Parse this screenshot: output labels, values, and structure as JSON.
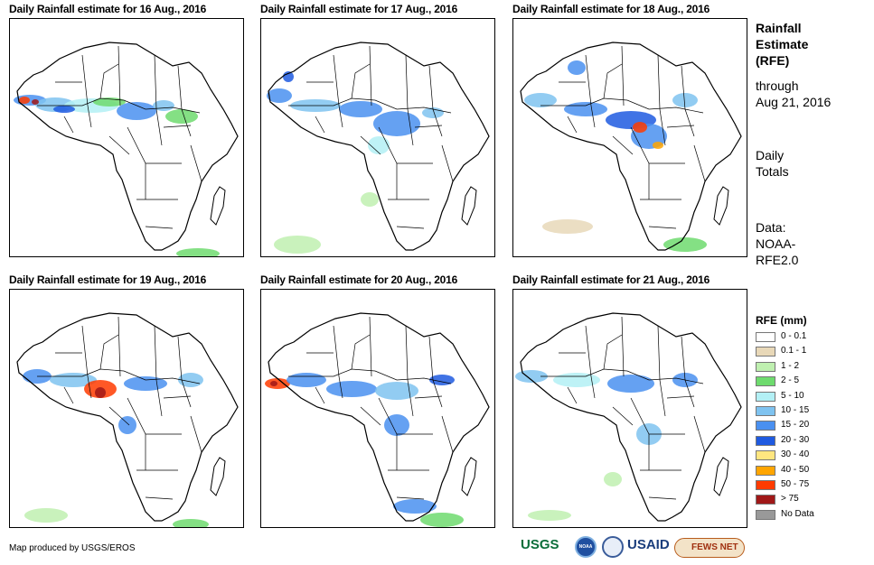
{
  "panels": [
    {
      "title": "Daily Rainfall estimate for 16 Aug., 2016"
    },
    {
      "title": "Daily Rainfall estimate for 17 Aug., 2016"
    },
    {
      "title": "Daily Rainfall estimate for 18 Aug., 2016"
    },
    {
      "title": "Daily Rainfall estimate for 19 Aug., 2016"
    },
    {
      "title": "Daily Rainfall estimate for 20 Aug., 2016"
    },
    {
      "title": "Daily Rainfall estimate for 21 Aug., 2016"
    }
  ],
  "sidebar": {
    "title_line1": "Rainfall",
    "title_line2": "Estimate",
    "title_line3": "(RFE)",
    "through_line1": "through",
    "through_line2": "Aug 21, 2016",
    "totals_line1": "Daily",
    "totals_line2": "Totals",
    "data_line1": "Data:",
    "data_line2": "NOAA-",
    "data_line3": "RFE2.0"
  },
  "legend": {
    "title": "RFE (mm)",
    "items": [
      {
        "label": "0 - 0.1",
        "color": "#ffffff"
      },
      {
        "label": "0.1 - 1",
        "color": "#e8d8b8"
      },
      {
        "label": "1 - 2",
        "color": "#bff0b0"
      },
      {
        "label": "2 - 5",
        "color": "#6edb6e"
      },
      {
        "label": "5 - 10",
        "color": "#b3f0f5"
      },
      {
        "label": "10 - 15",
        "color": "#7fc3f0"
      },
      {
        "label": "15 - 20",
        "color": "#4a90f0"
      },
      {
        "label": "20 - 30",
        "color": "#1f5ae0"
      },
      {
        "label": "30 - 40",
        "color": "#ffe680"
      },
      {
        "label": "40 - 50",
        "color": "#ffa500"
      },
      {
        "label": "50 - 75",
        "color": "#ff3b00"
      },
      {
        "label": "> 75",
        "color": "#a01818"
      },
      {
        "label": "No Data",
        "color": "#999999"
      }
    ]
  },
  "footer": {
    "credit": "Map produced by USGS/EROS",
    "logos": [
      "USGS",
      "NOAA",
      "USAID",
      "FEWS NET"
    ]
  }
}
